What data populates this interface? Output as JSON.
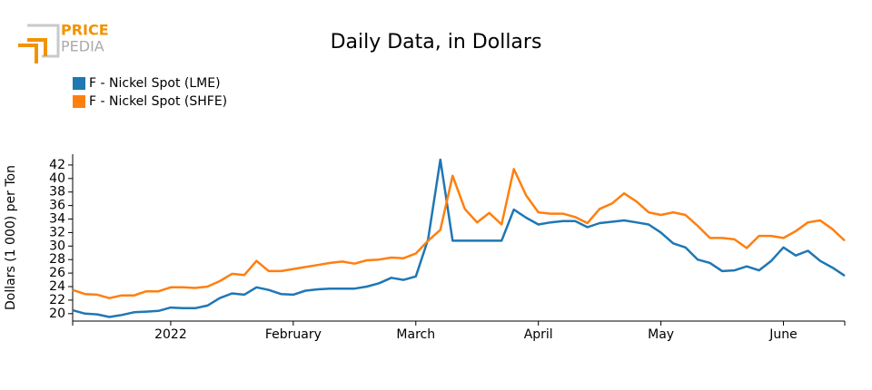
{
  "logo": {
    "line1": "PRICE",
    "line2": "PEDIA"
  },
  "chart_data": {
    "type": "line",
    "title": "Daily Data, in Dollars",
    "y_label": "Dollars (1 000) per Ton",
    "categories": [
      null,
      null,
      null,
      null,
      null,
      null,
      null,
      null,
      "2022",
      null,
      null,
      null,
      null,
      null,
      null,
      null,
      null,
      null,
      "February",
      null,
      null,
      null,
      null,
      null,
      null,
      null,
      null,
      null,
      "March",
      null,
      null,
      null,
      null,
      null,
      null,
      null,
      null,
      null,
      "April",
      null,
      null,
      null,
      null,
      null,
      null,
      null,
      null,
      null,
      "May",
      null,
      null,
      null,
      null,
      null,
      null,
      null,
      null,
      null,
      "June",
      null,
      null,
      null,
      null,
      null
    ],
    "series": [
      {
        "name": "F - Nickel Spot (LME)",
        "color": "#1f77b4",
        "values": [
          20.5,
          20.0,
          19.9,
          19.5,
          19.8,
          20.2,
          20.3,
          20.4,
          20.9,
          20.8,
          20.8,
          21.2,
          22.3,
          23.0,
          22.8,
          23.9,
          23.5,
          22.9,
          22.8,
          23.4,
          23.6,
          23.7,
          23.7,
          23.7,
          24.0,
          24.5,
          25.3,
          25.0,
          25.5,
          31.0,
          42.8,
          30.8,
          30.8,
          30.8,
          30.8,
          30.8,
          35.4,
          34.2,
          33.2,
          33.5,
          33.7,
          33.7,
          32.8,
          33.4,
          33.6,
          33.8,
          33.5,
          33.2,
          32.0,
          30.4,
          29.8,
          28.0,
          27.5,
          26.3,
          26.4,
          27.0,
          26.4,
          27.8,
          29.8,
          28.6,
          29.3,
          27.8,
          26.8,
          25.6
        ]
      },
      {
        "name": "F - Nickel Spot (SHFE)",
        "color": "#ff7f0e",
        "values": [
          23.5,
          22.9,
          22.8,
          22.3,
          22.7,
          22.7,
          23.3,
          23.3,
          23.9,
          23.9,
          23.8,
          24.0,
          24.8,
          25.9,
          25.7,
          27.8,
          26.3,
          26.3,
          26.6,
          26.9,
          27.2,
          27.5,
          27.7,
          27.4,
          27.9,
          28.0,
          28.3,
          28.2,
          28.9,
          30.8,
          32.4,
          40.4,
          35.5,
          33.5,
          34.9,
          33.2,
          41.4,
          37.5,
          35.0,
          34.8,
          34.8,
          34.3,
          33.4,
          35.5,
          36.3,
          37.8,
          36.6,
          35.0,
          34.6,
          35.0,
          34.6,
          33.0,
          31.2,
          31.2,
          31.0,
          29.7,
          31.5,
          31.5,
          31.2,
          32.2,
          33.5,
          33.8,
          32.5,
          30.8
        ]
      }
    ],
    "ylim": [
      18.9,
      43.6
    ],
    "yticks": [
      20,
      22,
      24,
      26,
      28,
      30,
      32,
      34,
      36,
      38,
      40,
      42
    ]
  }
}
